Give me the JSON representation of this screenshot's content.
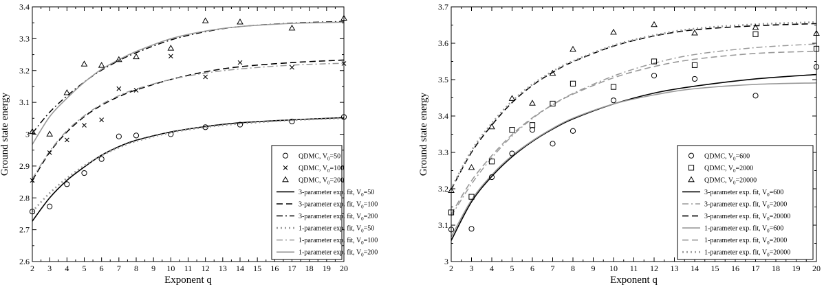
{
  "chart_data": [
    {
      "type": "scatter",
      "xlabel": "Exponent q",
      "ylabel": "Ground state energy",
      "xlim": [
        2,
        20
      ],
      "ylim": [
        2.6,
        3.4
      ],
      "xticks": [
        2,
        3,
        4,
        5,
        6,
        7,
        8,
        9,
        10,
        11,
        12,
        13,
        14,
        15,
        16,
        17,
        18,
        19,
        20
      ],
      "yticks": [
        2.6,
        2.7,
        2.8,
        2.9,
        3.0,
        3.1,
        3.2,
        3.3,
        3.4
      ],
      "ytick_labels": [
        "2.6",
        "2.7",
        "2.8",
        "2.9",
        "3",
        "3.1",
        "3.2",
        "3.3",
        "3.4"
      ],
      "grid": false,
      "legend_position": "bottom-right",
      "scatter_series": [
        {
          "prefix": "QDMC, V",
          "sub": "0",
          "suffix": "=50",
          "marker": "circle",
          "x": [
            2,
            3,
            4,
            5,
            6,
            7,
            8,
            10,
            12,
            14,
            17,
            20
          ],
          "y": [
            2.757,
            2.773,
            2.843,
            2.878,
            2.922,
            2.993,
            2.996,
            3.0,
            3.022,
            3.03,
            3.04,
            3.054
          ]
        },
        {
          "prefix": "QDMC, V",
          "sub": "0",
          "suffix": "=100",
          "marker": "cross",
          "x": [
            2,
            3,
            4,
            5,
            6,
            7,
            8,
            10,
            12,
            14,
            17,
            20
          ],
          "y": [
            2.855,
            2.942,
            2.982,
            3.028,
            3.045,
            3.143,
            3.138,
            3.245,
            3.18,
            3.225,
            3.21,
            3.222
          ]
        },
        {
          "prefix": "QDMC, V",
          "sub": "0",
          "suffix": "=200",
          "marker": "triangle",
          "x": [
            2,
            3,
            4,
            5,
            6,
            7,
            8,
            10,
            12,
            14,
            17,
            20
          ],
          "y": [
            3.008,
            3.0,
            3.13,
            3.22,
            3.216,
            3.234,
            3.243,
            3.27,
            3.356,
            3.352,
            3.333,
            3.364
          ]
        }
      ],
      "fit_series": [
        {
          "prefix": "3-parameter exp. fit, V",
          "sub": "0",
          "suffix": "=50",
          "color": "#000000",
          "dash": "solid",
          "x": [
            2,
            3,
            4,
            5,
            6,
            7,
            8,
            10,
            12,
            14,
            17,
            20
          ],
          "y": [
            2.727,
            2.8,
            2.855,
            2.897,
            2.934,
            2.961,
            2.981,
            3.007,
            3.024,
            3.036,
            3.045,
            3.052
          ]
        },
        {
          "prefix": "3-parameter exp. fit, V",
          "sub": "0",
          "suffix": "=100",
          "color": "#000000",
          "dash": "dashed",
          "x": [
            2,
            3,
            4,
            5,
            6,
            7,
            8,
            10,
            12,
            14,
            17,
            20
          ],
          "y": [
            2.855,
            2.943,
            3.007,
            3.055,
            3.091,
            3.118,
            3.139,
            3.172,
            3.196,
            3.212,
            3.225,
            3.233
          ]
        },
        {
          "prefix": "3-parameter exp. fit, V",
          "sub": "0",
          "suffix": "=200",
          "color": "#000000",
          "dash": "dashdot",
          "x": [
            2,
            3,
            4,
            5,
            6,
            7,
            8,
            10,
            12,
            14,
            17,
            20
          ],
          "y": [
            3.003,
            3.069,
            3.12,
            3.164,
            3.201,
            3.231,
            3.256,
            3.296,
            3.322,
            3.338,
            3.349,
            3.354
          ]
        },
        {
          "prefix": "1-parameter exp. fit, V",
          "sub": "0",
          "suffix": "=50",
          "color": "#999999",
          "dash": "dotted",
          "x": [
            2,
            3,
            4,
            5,
            6,
            7,
            8,
            10,
            12,
            14,
            17,
            20
          ],
          "y": [
            2.757,
            2.815,
            2.862,
            2.901,
            2.933,
            2.958,
            2.978,
            3.005,
            3.022,
            3.033,
            3.044,
            3.05
          ]
        },
        {
          "prefix": "1-parameter exp. fit, V",
          "sub": "0",
          "suffix": "=100",
          "color": "#999999",
          "dash": "dashdot",
          "x": [
            2,
            3,
            4,
            5,
            6,
            7,
            8,
            10,
            12,
            14,
            17,
            20
          ],
          "y": [
            2.86,
            2.946,
            3.011,
            3.058,
            3.094,
            3.121,
            3.142,
            3.172,
            3.192,
            3.205,
            3.217,
            3.223
          ]
        },
        {
          "prefix": "1-parameter exp. fit, V",
          "sub": "0",
          "suffix": "=200",
          "color": "#999999",
          "dash": "solid",
          "x": [
            2,
            3,
            4,
            5,
            6,
            7,
            8,
            10,
            12,
            14,
            17,
            20
          ],
          "y": [
            2.968,
            3.055,
            3.113,
            3.163,
            3.204,
            3.234,
            3.26,
            3.3,
            3.324,
            3.338,
            3.348,
            3.352
          ]
        }
      ]
    },
    {
      "type": "scatter",
      "xlabel": "Exponent q",
      "ylabel": "Ground state energy",
      "xlim": [
        2,
        20
      ],
      "ylim": [
        3.0,
        3.7
      ],
      "xticks": [
        2,
        3,
        4,
        5,
        6,
        7,
        8,
        9,
        10,
        11,
        12,
        13,
        14,
        15,
        16,
        17,
        18,
        19,
        20
      ],
      "yticks": [
        3.0,
        3.1,
        3.2,
        3.3,
        3.4,
        3.5,
        3.6,
        3.7
      ],
      "ytick_labels": [
        "3",
        "3.1",
        "3.2",
        "3.3",
        "3.4",
        "3.5",
        "3.6",
        "3.7"
      ],
      "grid": false,
      "legend_position": "bottom-right",
      "scatter_series": [
        {
          "prefix": "QDMC, V",
          "sub": "0",
          "suffix": "=600",
          "marker": "circle",
          "x": [
            2,
            3,
            4,
            5,
            6,
            7,
            8,
            10,
            12,
            14,
            17,
            20
          ],
          "y": [
            3.088,
            3.09,
            3.232,
            3.297,
            3.362,
            3.324,
            3.359,
            3.443,
            3.511,
            3.502,
            3.456,
            3.535
          ]
        },
        {
          "prefix": "QDMC, V",
          "sub": "0",
          "suffix": "=2000",
          "marker": "square",
          "x": [
            2,
            3,
            4,
            5,
            6,
            7,
            8,
            10,
            12,
            14,
            17,
            20
          ],
          "y": [
            3.135,
            3.178,
            3.275,
            3.362,
            3.375,
            3.434,
            3.489,
            3.48,
            3.55,
            3.54,
            3.625,
            3.585
          ]
        },
        {
          "prefix": "QDMC, V",
          "sub": "0",
          "suffix": "=20000",
          "marker": "triangle",
          "x": [
            2,
            3,
            4,
            5,
            6,
            7,
            8,
            10,
            12,
            14,
            17,
            20
          ],
          "y": [
            3.195,
            3.258,
            3.37,
            3.448,
            3.435,
            3.517,
            3.583,
            3.63,
            3.651,
            3.628,
            3.643,
            3.627
          ]
        }
      ],
      "fit_series": [
        {
          "prefix": "3-parameter exp. fit, V",
          "sub": "0",
          "suffix": "=600",
          "color": "#000000",
          "dash": "solid",
          "x": [
            2,
            3,
            4,
            5,
            6,
            7,
            8,
            10,
            12,
            14,
            17,
            20
          ],
          "y": [
            3.058,
            3.164,
            3.234,
            3.288,
            3.33,
            3.364,
            3.392,
            3.433,
            3.463,
            3.482,
            3.502,
            3.514
          ]
        },
        {
          "prefix": "3-parameter exp. fit, V",
          "sub": "0",
          "suffix": "=2000",
          "color": "#999999",
          "dash": "dashdot",
          "x": [
            2,
            3,
            4,
            5,
            6,
            7,
            8,
            10,
            12,
            14,
            17,
            20
          ],
          "y": [
            3.125,
            3.213,
            3.285,
            3.345,
            3.393,
            3.431,
            3.462,
            3.51,
            3.545,
            3.569,
            3.588,
            3.598
          ]
        },
        {
          "prefix": "3-parameter exp. fit, V",
          "sub": "0",
          "suffix": "=20000",
          "color": "#000000",
          "dash": "dashed",
          "x": [
            2,
            3,
            4,
            5,
            6,
            7,
            8,
            10,
            12,
            14,
            17,
            20
          ],
          "y": [
            3.198,
            3.3,
            3.375,
            3.437,
            3.484,
            3.52,
            3.549,
            3.592,
            3.62,
            3.637,
            3.648,
            3.654
          ]
        },
        {
          "prefix": "1-parameter exp. fit, V",
          "sub": "0",
          "suffix": "=600",
          "color": "#999999",
          "dash": "solid",
          "x": [
            2,
            3,
            4,
            5,
            6,
            7,
            8,
            10,
            12,
            14,
            17,
            20
          ],
          "y": [
            3.068,
            3.169,
            3.238,
            3.291,
            3.332,
            3.366,
            3.394,
            3.433,
            3.458,
            3.475,
            3.487,
            3.491
          ]
        },
        {
          "prefix": "1-parameter exp. fit, V",
          "sub": "0",
          "suffix": "=2000",
          "color": "#999999",
          "dash": "dashed",
          "x": [
            2,
            3,
            4,
            5,
            6,
            7,
            8,
            10,
            12,
            14,
            17,
            20
          ],
          "y": [
            3.13,
            3.222,
            3.291,
            3.349,
            3.395,
            3.431,
            3.46,
            3.505,
            3.536,
            3.556,
            3.572,
            3.578
          ]
        },
        {
          "prefix": "1-parameter exp. fit, V",
          "sub": "0",
          "suffix": "=20000",
          "color": "#999999",
          "dash": "dotted",
          "x": [
            2,
            3,
            4,
            5,
            6,
            7,
            8,
            10,
            12,
            14,
            17,
            20
          ],
          "y": [
            3.2,
            3.305,
            3.38,
            3.441,
            3.487,
            3.523,
            3.551,
            3.594,
            3.622,
            3.64,
            3.652,
            3.658
          ]
        }
      ]
    }
  ]
}
